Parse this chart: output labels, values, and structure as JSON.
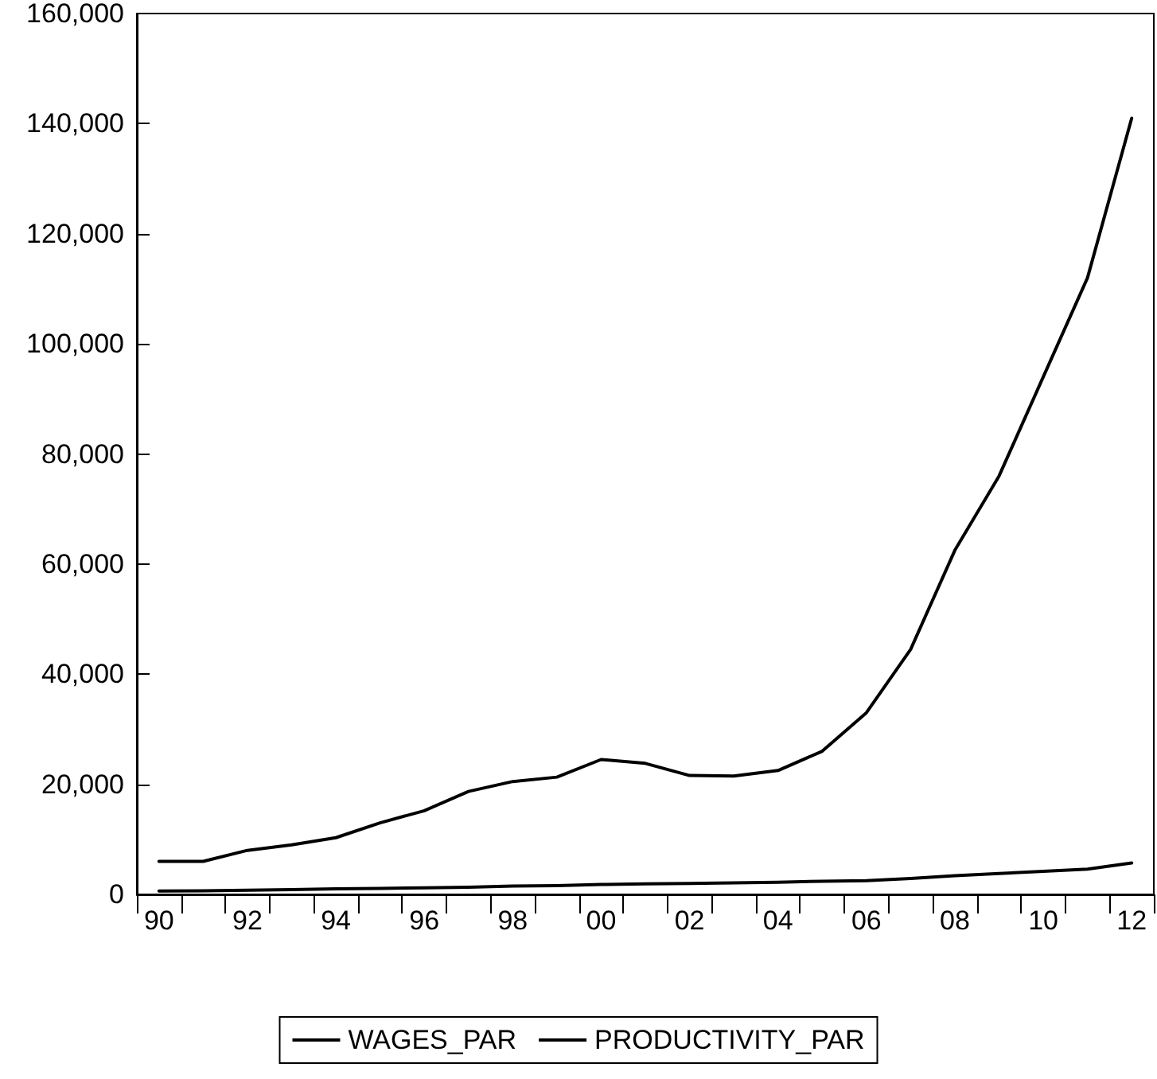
{
  "chart_data": {
    "type": "line",
    "categories": [
      "90",
      null,
      "92",
      null,
      "94",
      null,
      "96",
      null,
      "98",
      null,
      "00",
      null,
      "02",
      null,
      "04",
      null,
      "06",
      null,
      "08",
      null,
      "10",
      null,
      "12"
    ],
    "series": [
      {
        "name": "WAGES_PAR",
        "color": "#000000",
        "values": [
          6000,
          6000,
          8000,
          9000,
          10300,
          13000,
          15200,
          18700,
          20500,
          21300,
          24500,
          23800,
          21600,
          21500,
          22500,
          26000,
          33000,
          44500,
          62500,
          76000,
          94000,
          112000,
          141000
        ]
      },
      {
        "name": "PRODUCTIVITY_PAR",
        "color": "#000000",
        "values": [
          600,
          650,
          750,
          850,
          1000,
          1100,
          1200,
          1300,
          1500,
          1600,
          1800,
          1900,
          2000,
          2100,
          2200,
          2400,
          2500,
          2900,
          3400,
          3800,
          4200,
          4600,
          5700
        ]
      }
    ],
    "ylim": [
      0,
      160000
    ],
    "yticks": [
      {
        "value": 0,
        "label": "0"
      },
      {
        "value": 20000,
        "label": "20,000"
      },
      {
        "value": 40000,
        "label": "40,000"
      },
      {
        "value": 60000,
        "label": "60,000"
      },
      {
        "value": 80000,
        "label": "80,000"
      },
      {
        "value": 100000,
        "label": "100,000"
      },
      {
        "value": 120000,
        "label": "120,000"
      },
      {
        "value": 140000,
        "label": "140,000"
      },
      {
        "value": 160000,
        "label": "160,000"
      }
    ],
    "grid": false,
    "legend": "bottom",
    "marker": "none",
    "line_style": "solid"
  }
}
